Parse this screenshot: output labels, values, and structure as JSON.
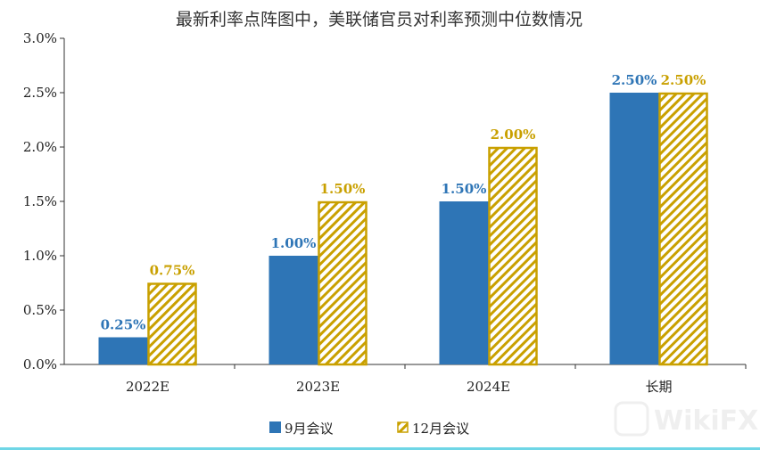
{
  "chart_data": {
    "type": "bar",
    "title": "最新利率点阵图中，美联储官员对利率预测中位数情况",
    "categories": [
      "2022E",
      "2023E",
      "2024E",
      "长期"
    ],
    "series": [
      {
        "name": "9月会议",
        "values": [
          0.25,
          1.0,
          1.5,
          2.5
        ],
        "labels": [
          "0.25%",
          "1.00%",
          "1.50%",
          "2.50%"
        ],
        "color": "#2e75b6",
        "pattern": "solid"
      },
      {
        "name": "12月会议",
        "values": [
          0.75,
          1.5,
          2.0,
          2.5
        ],
        "labels": [
          "0.75%",
          "1.50%",
          "2.00%",
          "2.50%"
        ],
        "color": "#c9a000",
        "pattern": "hatched"
      }
    ],
    "ylim": [
      0,
      3.0
    ],
    "yticks": [
      "0.0%",
      "0.5%",
      "1.0%",
      "1.5%",
      "2.0%",
      "2.5%",
      "3.0%"
    ],
    "xlabel": "",
    "ylabel": "",
    "grid": false,
    "legend": "bottom-center"
  },
  "watermark": "WikiFX"
}
